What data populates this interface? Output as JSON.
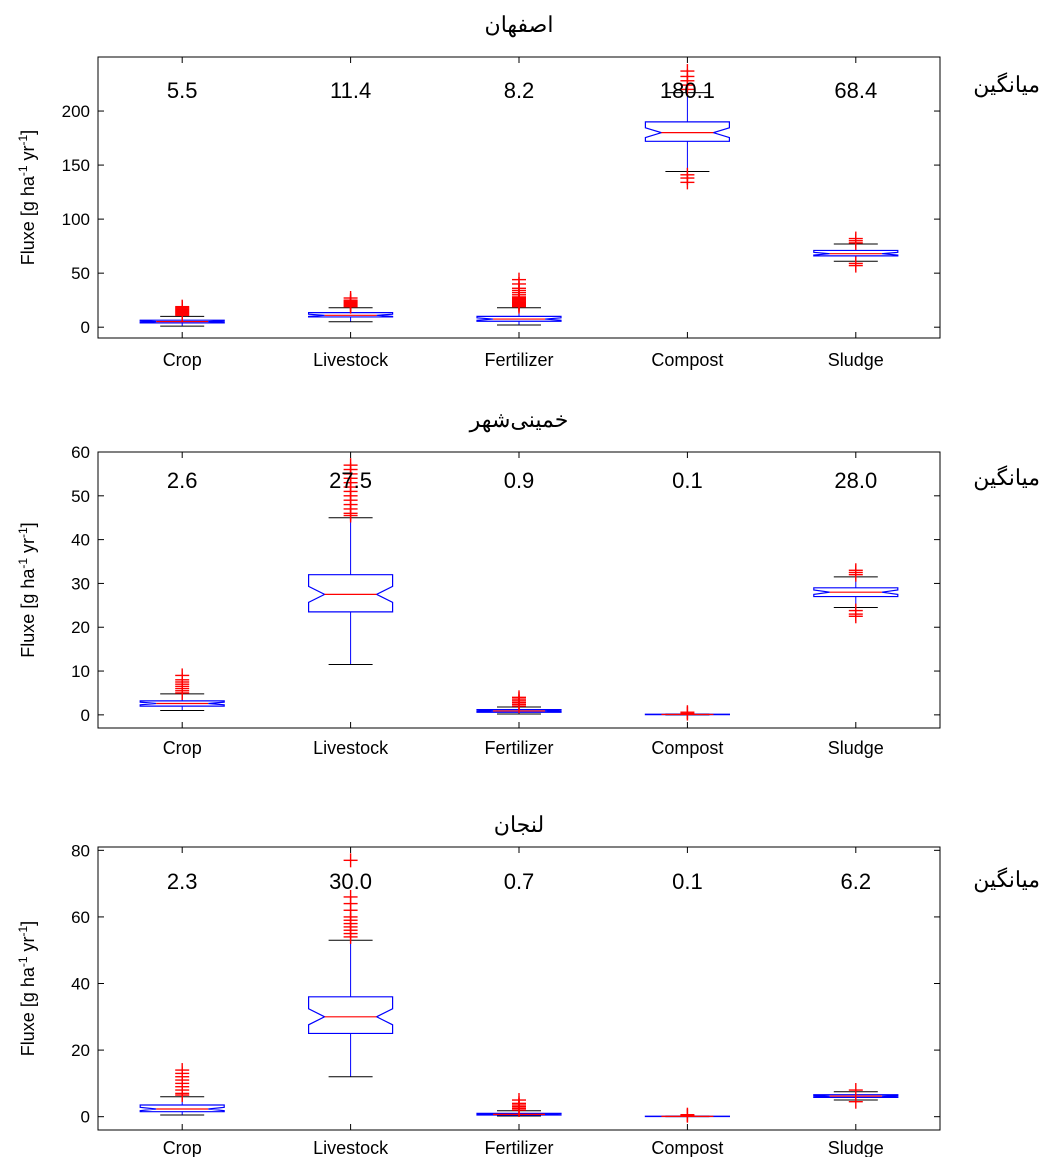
{
  "chart_data": [
    {
      "type": "box",
      "title": "اصفهان",
      "ylabel": "Fluxe [g ha-1 yr-1]",
      "ylabel_parts": [
        "Fluxe [g ha",
        "-1",
        " yr",
        "-1",
        "]"
      ],
      "ylim": [
        -10,
        250
      ],
      "yticks": [
        0,
        50,
        100,
        150,
        200
      ],
      "mean_label": "میانگین",
      "categories": [
        "Crop",
        "Livestock",
        "Fertilizer",
        "Compost",
        "Sludge"
      ],
      "means": [
        "5.5",
        "11.4",
        "8.2",
        "180.1",
        "68.4"
      ],
      "boxes": [
        {
          "whisker_low": 1,
          "q1": 4,
          "median": 5.2,
          "q3": 6.5,
          "whisker_high": 10,
          "outliers": [
            11,
            12,
            13,
            14,
            15,
            16,
            17,
            18,
            19
          ]
        },
        {
          "whisker_low": 5,
          "q1": 9.5,
          "median": 11,
          "q3": 13.5,
          "whisker_high": 18,
          "outliers": [
            19,
            20,
            21,
            22,
            23,
            24,
            25,
            27
          ]
        },
        {
          "whisker_low": 2,
          "q1": 5.5,
          "median": 7.5,
          "q3": 10,
          "whisker_high": 18,
          "outliers": [
            19,
            20,
            21,
            22,
            23,
            24,
            25,
            26,
            27,
            28,
            30,
            32,
            34,
            36,
            40,
            44
          ]
        },
        {
          "whisker_low": 144,
          "q1": 172,
          "median": 180,
          "q3": 190,
          "whisker_high": 217,
          "outliers": [
            134,
            138,
            141,
            220,
            224,
            228,
            232,
            237
          ]
        },
        {
          "whisker_low": 61,
          "q1": 66,
          "median": 68,
          "q3": 71,
          "whisker_high": 77,
          "outliers": [
            57,
            59,
            78,
            80,
            82
          ]
        }
      ]
    },
    {
      "type": "box",
      "title": "خمینی‌شهر",
      "ylabel": "Fluxe [g ha-1 yr-1]",
      "ylabel_parts": [
        "Fluxe [g ha",
        "-1",
        " yr",
        "-1",
        "]"
      ],
      "ylim": [
        -3,
        60
      ],
      "yticks": [
        0,
        10,
        20,
        30,
        40,
        50,
        60
      ],
      "mean_label": "میانگین",
      "categories": [
        "Crop",
        "Livestock",
        "Fertilizer",
        "Compost",
        "Sludge"
      ],
      "means": [
        "2.6",
        "27.5",
        "0.9",
        "0.1",
        "28.0"
      ],
      "boxes": [
        {
          "whisker_low": 1,
          "q1": 2,
          "median": 2.6,
          "q3": 3.2,
          "whisker_high": 4.8,
          "outliers": [
            5,
            5.5,
            6,
            6.5,
            7,
            7.5,
            8,
            9
          ]
        },
        {
          "whisker_low": 11.5,
          "q1": 23.5,
          "median": 27.5,
          "q3": 32,
          "whisker_high": 45,
          "outliers": [
            45.5,
            46,
            47,
            48,
            49,
            50,
            51,
            52,
            53,
            54,
            55,
            56,
            57
          ]
        },
        {
          "whisker_low": 0.2,
          "q1": 0.6,
          "median": 0.9,
          "q3": 1.2,
          "whisker_high": 1.8,
          "outliers": [
            2,
            2.4,
            2.8,
            3.2,
            3.6,
            4
          ]
        },
        {
          "whisker_low": 0,
          "q1": 0.05,
          "median": 0.1,
          "q3": 0.15,
          "whisker_high": 0.2,
          "outliers": [
            0.3,
            0.6
          ]
        },
        {
          "whisker_low": 24.5,
          "q1": 27,
          "median": 28,
          "q3": 29,
          "whisker_high": 31.5,
          "outliers": [
            22.5,
            23,
            23.8,
            32,
            32.5,
            33
          ]
        }
      ]
    },
    {
      "type": "box",
      "title": "لنجان",
      "ylabel": "Fluxe [g ha-1 yr-1]",
      "ylabel_parts": [
        "Fluxe [g ha",
        "-1",
        " yr",
        "-1",
        "]"
      ],
      "ylim": [
        -4,
        81
      ],
      "yticks": [
        0,
        20,
        40,
        60,
        80
      ],
      "mean_label": "میانگین",
      "categories": [
        "Crop",
        "Livestock",
        "Fertilizer",
        "Compost",
        "Sludge"
      ],
      "means": [
        "2.3",
        "30.0",
        "0.7",
        "0.1",
        "6.2"
      ],
      "boxes": [
        {
          "whisker_low": 0.5,
          "q1": 1.5,
          "median": 2.3,
          "q3": 3.5,
          "whisker_high": 6,
          "outliers": [
            6.5,
            7,
            8,
            9,
            10,
            11,
            12,
            13,
            14
          ]
        },
        {
          "whisker_low": 12,
          "q1": 25,
          "median": 30,
          "q3": 36,
          "whisker_high": 53,
          "outliers": [
            54,
            55,
            56,
            57,
            58,
            59,
            60,
            62,
            64,
            66,
            77
          ]
        },
        {
          "whisker_low": 0.2,
          "q1": 0.5,
          "median": 0.7,
          "q3": 1,
          "whisker_high": 1.8,
          "outliers": [
            2,
            2.5,
            3,
            3.5,
            4,
            5
          ]
        },
        {
          "whisker_low": 0,
          "q1": 0.05,
          "median": 0.1,
          "q3": 0.15,
          "whisker_high": 0.2,
          "outliers": [
            0.3,
            0.6
          ]
        },
        {
          "whisker_low": 5,
          "q1": 5.8,
          "median": 6.2,
          "q3": 6.6,
          "whisker_high": 7.5,
          "outliers": [
            4.5,
            8
          ]
        }
      ]
    }
  ]
}
